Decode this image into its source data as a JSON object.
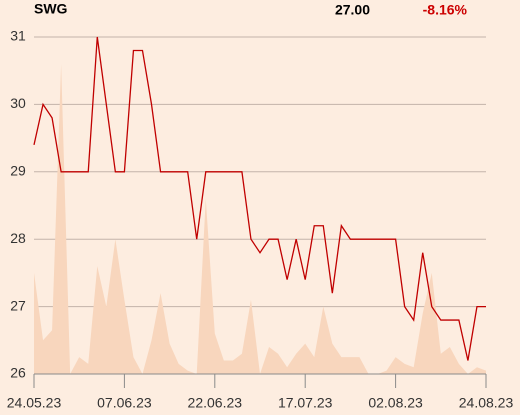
{
  "header": {
    "ticker": "SWG",
    "price": "27.00",
    "change": "-8.16%"
  },
  "chart_data": {
    "type": "line",
    "categories": [
      "24.05.23",
      null,
      null,
      null,
      null,
      null,
      null,
      null,
      null,
      null,
      "07.06.23",
      null,
      null,
      null,
      null,
      null,
      null,
      null,
      null,
      null,
      "22.06.23",
      null,
      null,
      null,
      null,
      null,
      null,
      null,
      null,
      null,
      "17.07.23",
      null,
      null,
      null,
      null,
      null,
      null,
      null,
      null,
      null,
      "02.08.23",
      null,
      null,
      null,
      null,
      null,
      null,
      null,
      null,
      null,
      "24.08.23"
    ],
    "series": [
      {
        "color": "#c00000",
        "values": [
          29.4,
          30.0,
          29.8,
          29.0,
          29.0,
          29.0,
          29.0,
          31.0,
          30.0,
          29.0,
          29.0,
          30.8,
          30.8,
          30.0,
          29.0,
          29.0,
          29.0,
          29.0,
          28.0,
          29.0,
          29.0,
          29.0,
          29.0,
          29.0,
          28.0,
          27.8,
          28.0,
          28.0,
          27.4,
          28.0,
          27.4,
          28.2,
          28.2,
          27.2,
          28.2,
          28.0,
          28.0,
          28.0,
          28.0,
          28.0,
          28.0,
          27.0,
          26.8,
          27.8,
          27.0,
          26.8,
          26.8,
          26.8,
          26.2,
          27.0,
          27.0
        ]
      },
      {
        "color": "#f8d6bd",
        "fill": true,
        "values": [
          27.5,
          26.5,
          26.65,
          30.6,
          26.0,
          26.25,
          26.15,
          27.6,
          27.0,
          28.0,
          27.1,
          26.25,
          26.0,
          26.5,
          27.2,
          26.45,
          26.15,
          26.05,
          26.0,
          28.6,
          26.6,
          26.2,
          26.2,
          26.3,
          27.1,
          26.0,
          26.4,
          26.3,
          26.1,
          26.3,
          26.45,
          26.25,
          27.0,
          26.45,
          26.25,
          26.25,
          26.25,
          26.0,
          26.0,
          26.05,
          26.25,
          26.15,
          26.1,
          26.9,
          27.5,
          26.3,
          26.4,
          26.15,
          26.0,
          26.1,
          26.05
        ]
      }
    ],
    "ylim": [
      26,
      31
    ],
    "yticks": [
      26,
      27,
      28,
      29,
      30,
      31
    ],
    "grid": true
  }
}
